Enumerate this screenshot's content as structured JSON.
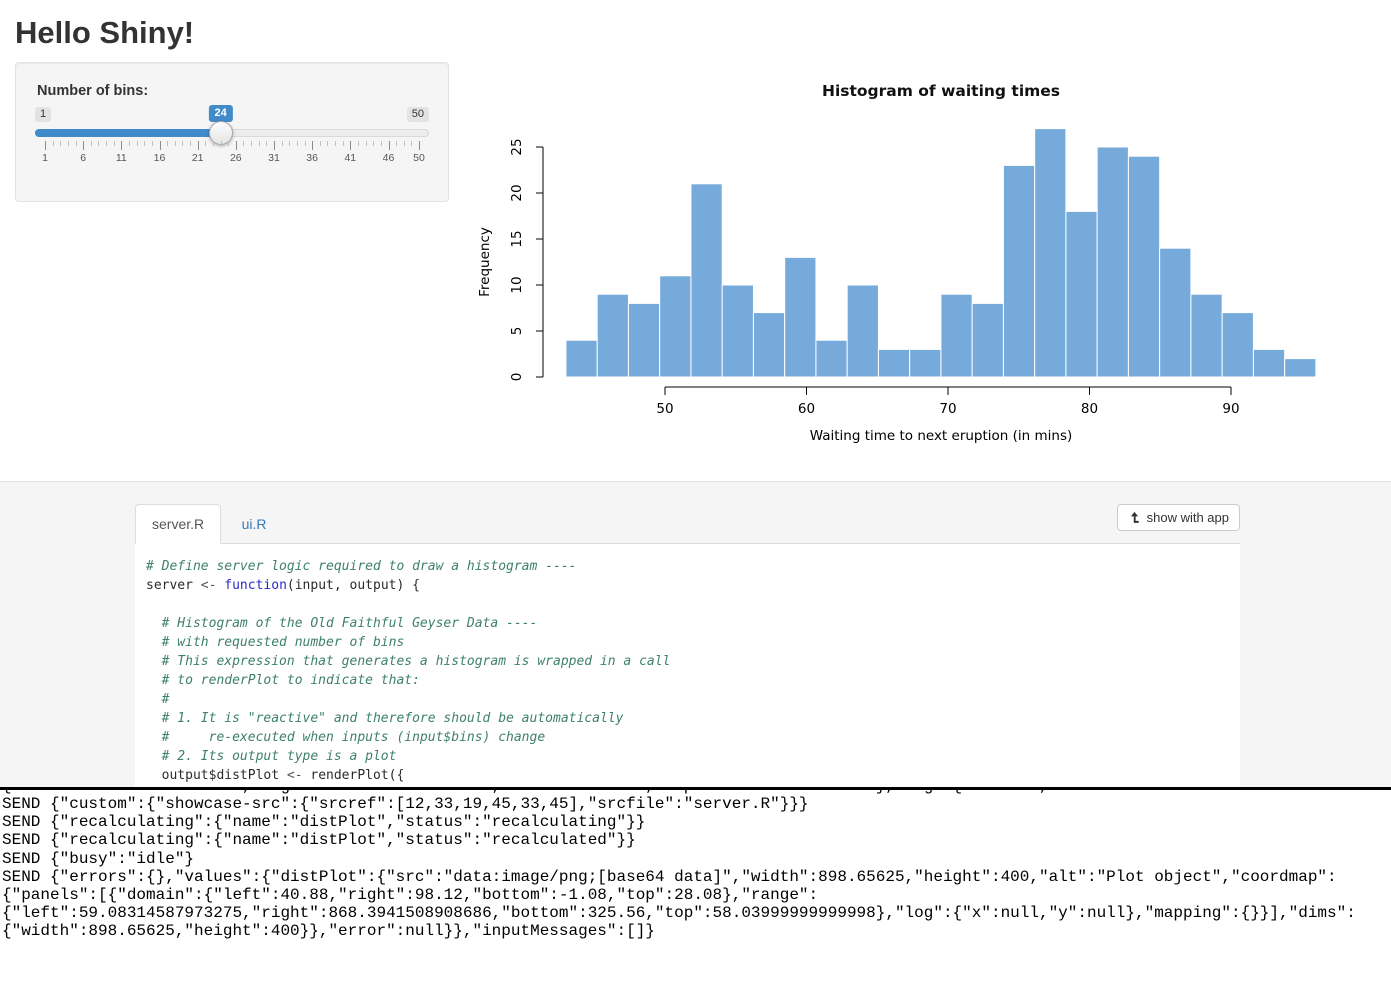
{
  "page": {
    "title": "Hello Shiny!"
  },
  "controls": {
    "bins_label": "Number of bins:",
    "slider": {
      "min": 1,
      "max": 50,
      "value": 24,
      "grid_labels": [
        1,
        6,
        11,
        16,
        21,
        26,
        31,
        36,
        41,
        46,
        50
      ],
      "accent_color": "#428bca"
    }
  },
  "chart_data": {
    "type": "bar",
    "title": "Histogram of waiting times",
    "xlabel": "Waiting time to next eruption (in mins)",
    "ylabel": "Frequency",
    "xlim": [
      43,
      96
    ],
    "ylim": [
      0,
      27
    ],
    "bin_start": 43,
    "bin_width": 2.2083333,
    "counts": [
      4,
      9,
      8,
      11,
      21,
      10,
      7,
      13,
      4,
      10,
      3,
      3,
      9,
      8,
      23,
      27,
      18,
      25,
      24,
      14,
      9,
      7,
      3,
      2
    ],
    "x_ticks": [
      50,
      60,
      70,
      80,
      90
    ],
    "y_ticks": [
      0,
      5,
      10,
      15,
      20,
      25
    ],
    "grid": false,
    "legend": "none",
    "bar_color": "#75AADB",
    "bar_border": "#FFFFFF"
  },
  "code_panel": {
    "tabs": [
      {
        "label": "server.R",
        "active": true
      },
      {
        "label": "ui.R",
        "active": false
      }
    ],
    "show_with_app_label": "show with app",
    "code_lines": [
      [
        [
          "com",
          "# Define server logic required to draw a histogram ----"
        ]
      ],
      [
        [
          "pl",
          "server "
        ],
        [
          "op",
          "<- "
        ],
        [
          "kw",
          "function"
        ],
        [
          "pl",
          "(input, output) {"
        ]
      ],
      [],
      [
        [
          "com",
          "  # Histogram of the Old Faithful Geyser Data ----"
        ]
      ],
      [
        [
          "com",
          "  # with requested number of bins"
        ]
      ],
      [
        [
          "com",
          "  # This expression that generates a histogram is wrapped in a call"
        ]
      ],
      [
        [
          "com",
          "  # to renderPlot to indicate that:"
        ]
      ],
      [
        [
          "com",
          "  #"
        ]
      ],
      [
        [
          "com",
          "  # 1. It is \"reactive\" and therefore should be automatically"
        ]
      ],
      [
        [
          "com",
          "  #     re-executed when inputs (input$bins) change"
        ]
      ],
      [
        [
          "com",
          "  # 2. Its output type is a plot"
        ]
      ],
      [
        [
          "pl",
          "  output$distPlot "
        ],
        [
          "op",
          "<- "
        ],
        [
          "pl",
          "renderPlot({"
        ]
      ]
    ]
  },
  "console": {
    "partial_line": "{\"left\":59.08314587973275,\"right\":868.3941508908686,\"bottom\":325.56,\"top\":58.03999999999998},\"log\":{\"x\":null,",
    "display_lines": [
      "SEND {\"custom\":{\"showcase-src\":{\"srcref\":[12,33,19,45,33,45],\"srcfile\":\"server.R\"}}}",
      "SEND {\"recalculating\":{\"name\":\"distPlot\",\"status\":\"recalculating\"}}",
      "SEND {\"recalculating\":{\"name\":\"distPlot\",\"status\":\"recalculated\"}}",
      "SEND {\"busy\":\"idle\"}",
      "SEND {\"errors\":{},\"values\":{\"distPlot\":{\"src\":\"data:image/png;[base64 data]\",\"width\":898.65625,\"height\":400,\"alt\":\"Plot object\",\"coordmap\":",
      "{\"panels\":[{\"domain\":{\"left\":40.88,\"right\":98.12,\"bottom\":-1.08,\"top\":28.08},\"range\":",
      "{\"left\":59.08314587973275,\"right\":868.3941508908686,\"bottom\":325.56,\"top\":58.03999999999998},\"log\":{\"x\":null,\"y\":null},\"mapping\":{}}],\"dims\":",
      "{\"width\":898.65625,\"height\":400}},\"error\":null}},\"inputMessages\":[]}"
    ]
  }
}
